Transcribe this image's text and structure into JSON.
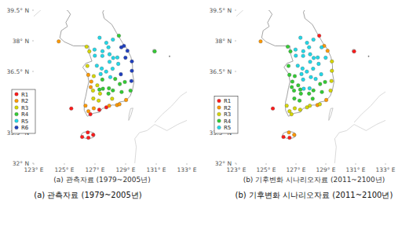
{
  "chart_data": [
    {
      "type": "scatter",
      "title": "(a) 관측자료 (1979~2005년)",
      "xlim": [
        123,
        133
      ],
      "ylim": [
        32,
        39.5
      ],
      "xticks": [
        {
          "value": 123,
          "label": "123° E"
        },
        {
          "value": 125,
          "label": "125° E"
        },
        {
          "value": 127,
          "label": "127° E"
        },
        {
          "value": 129,
          "label": "129° E"
        },
        {
          "value": 131,
          "label": "131° E"
        },
        {
          "value": 133,
          "label": "133° E"
        }
      ],
      "yticks": [
        {
          "value": 32,
          "label": "32° N"
        },
        {
          "value": 33.5,
          "label": "33.5° N"
        },
        {
          "value": 35,
          "label": "35° N"
        },
        {
          "value": 36.5,
          "label": "36.5° N"
        },
        {
          "value": 38,
          "label": "38° N"
        },
        {
          "value": 39.5,
          "label": "39.5° N"
        }
      ],
      "legend": "bottom-left",
      "marker": "circle",
      "series": [
        {
          "name": "R1",
          "color": "#ff1a1a",
          "x": [
            126.7,
            125.45,
            127.74,
            127.28,
            126.53,
            126.57,
            126.88,
            126.16
          ],
          "values": [
            34.4,
            34.68,
            34.74,
            34.62,
            33.51,
            33.25,
            33.39,
            33.29
          ]
        },
        {
          "name": "R2",
          "color": "#ff9900",
          "x": [
            126.76,
            126.72,
            126.56,
            126.38,
            126.57,
            126.92,
            128.44,
            128.6,
            127.93,
            124.63,
            129.03
          ],
          "values": [
            36.0,
            35.73,
            36.33,
            34.82,
            34.55,
            34.69,
            34.85,
            34.89,
            34.82,
            37.97,
            35.1
          ]
        },
        {
          "name": "R3",
          "color": "#d6d600",
          "x": [
            127.15,
            127.33,
            126.87,
            126.92,
            126.89,
            127.24,
            126.63,
            126.45,
            126.5,
            128.12
          ],
          "values": [
            35.82,
            35.41,
            35.56,
            36.27,
            35.17,
            35.07,
            37.48,
            37.71,
            36.77,
            35.16
          ]
        },
        {
          "name": "R4",
          "color": "#33cc33",
          "x": [
            128.32,
            128.62,
            128.95,
            127.91,
            128.17,
            128.74,
            129.32,
            128.56,
            130.9,
            127.48,
            127.52,
            127.29,
            127.88
          ],
          "values": [
            36.13,
            35.88,
            35.98,
            35.67,
            35.57,
            35.49,
            35.56,
            38.25,
            37.48,
            36.1,
            35.65,
            35.61,
            35.41
          ]
        },
        {
          "name": "R5",
          "color": "#22d8e8",
          "x": [
            126.97,
            127.74,
            127.95,
            126.99,
            127.49,
            127.48,
            127.88,
            128.17,
            127.3,
            127.95,
            128.19,
            128.46,
            127.44,
            127.12,
            127.73,
            127.37,
            128.52,
            128.15,
            128.0
          ],
          "values": [
            37.57,
            37.9,
            37.34,
            37.27,
            37.49,
            37.26,
            37.68,
            38.06,
            38.15,
            36.97,
            37.16,
            37.18,
            36.64,
            36.78,
            36.49,
            36.37,
            36.87,
            36.63,
            36.22
          ]
        },
        {
          "name": "R6",
          "color": "#1f3fbf",
          "x": [
            128.72,
            128.89,
            129.12,
            128.99,
            129.41,
            129.41,
            128.69,
            129.38
          ],
          "values": [
            37.68,
            37.75,
            37.51,
            37.17,
            36.99,
            36.53,
            36.36,
            36.03
          ]
        }
      ]
    },
    {
      "type": "scatter",
      "title": "(b) 기후변화 시나리오자료 (2011~2100년)",
      "xlim": [
        123,
        133
      ],
      "ylim": [
        32,
        39.5
      ],
      "xticks": [
        {
          "value": 123,
          "label": "123° E"
        },
        {
          "value": 125,
          "label": "125° E"
        },
        {
          "value": 127,
          "label": "127° E"
        },
        {
          "value": 129,
          "label": "129° E"
        },
        {
          "value": 131,
          "label": "131° E"
        },
        {
          "value": 133,
          "label": "133° E"
        }
      ],
      "yticks": [
        {
          "value": 32,
          "label": "32° N"
        },
        {
          "value": 33.5,
          "label": "33.5° N"
        },
        {
          "value": 35,
          "label": "35° N"
        },
        {
          "value": 36.5,
          "label": "36.5° N"
        },
        {
          "value": 38,
          "label": "38° N"
        },
        {
          "value": 39.5,
          "label": "39.5° N"
        }
      ],
      "legend": "bottom-left",
      "marker": "circle",
      "series": [
        {
          "name": "R1",
          "color": "#ff1a1a",
          "x": [
            128.56,
            130.9,
            126.16,
            126.57,
            125.45
          ],
          "values": [
            38.25,
            37.48,
            33.29,
            33.25,
            34.68
          ]
        },
        {
          "name": "R2",
          "color": "#ff9900",
          "x": [
            128.89,
            129.12,
            126.53,
            126.88,
            129.03,
            128.44,
            124.63
          ],
          "values": [
            37.75,
            37.51,
            33.51,
            33.39,
            35.1,
            34.85,
            37.97
          ]
        },
        {
          "name": "R3",
          "color": "#d6d600",
          "x": [
            129.38,
            129.32,
            129.41,
            129.41,
            127.74,
            126.7,
            126.38,
            128.6,
            127.93,
            127.28,
            126.57,
            126.92
          ],
          "values": [
            36.03,
            35.56,
            36.99,
            36.53,
            34.74,
            34.4,
            34.82,
            34.89,
            34.82,
            34.62,
            34.55,
            34.69
          ]
        },
        {
          "name": "R4",
          "color": "#33cc33",
          "x": [
            126.89,
            128.12,
            128.74,
            127.24,
            128.62,
            128.95,
            128.17,
            127.88,
            126.76,
            126.72,
            126.87,
            127.33,
            126.56,
            126.5,
            126.63,
            126.45,
            127.15,
            126.92,
            127.29
          ],
          "values": [
            35.17,
            35.16,
            35.49,
            35.07,
            35.88,
            35.98,
            35.57,
            35.41,
            36.0,
            35.73,
            35.56,
            35.41,
            36.33,
            36.77,
            37.48,
            37.71,
            35.82,
            36.27,
            35.61
          ]
        },
        {
          "name": "R5",
          "color": "#22d8e8",
          "x": [
            126.97,
            127.74,
            127.95,
            126.99,
            127.49,
            127.48,
            127.88,
            128.17,
            127.3,
            127.95,
            128.19,
            128.46,
            127.44,
            127.12,
            127.73,
            127.37,
            128.52,
            128.15,
            128.0,
            128.72,
            128.99,
            128.69,
            128.32,
            127.48,
            127.52,
            127.91
          ],
          "values": [
            37.57,
            37.9,
            37.34,
            37.27,
            37.49,
            37.26,
            37.68,
            38.06,
            38.15,
            36.97,
            37.16,
            37.18,
            36.64,
            36.78,
            36.49,
            36.37,
            36.87,
            36.63,
            36.22,
            37.68,
            37.17,
            36.36,
            36.13,
            36.1,
            35.65,
            35.67
          ]
        }
      ]
    }
  ],
  "captions": [
    "(a) 관측자료 (1979~2005년)",
    "(b) 기후변화 시나리오자료 (2011~2100년)"
  ]
}
